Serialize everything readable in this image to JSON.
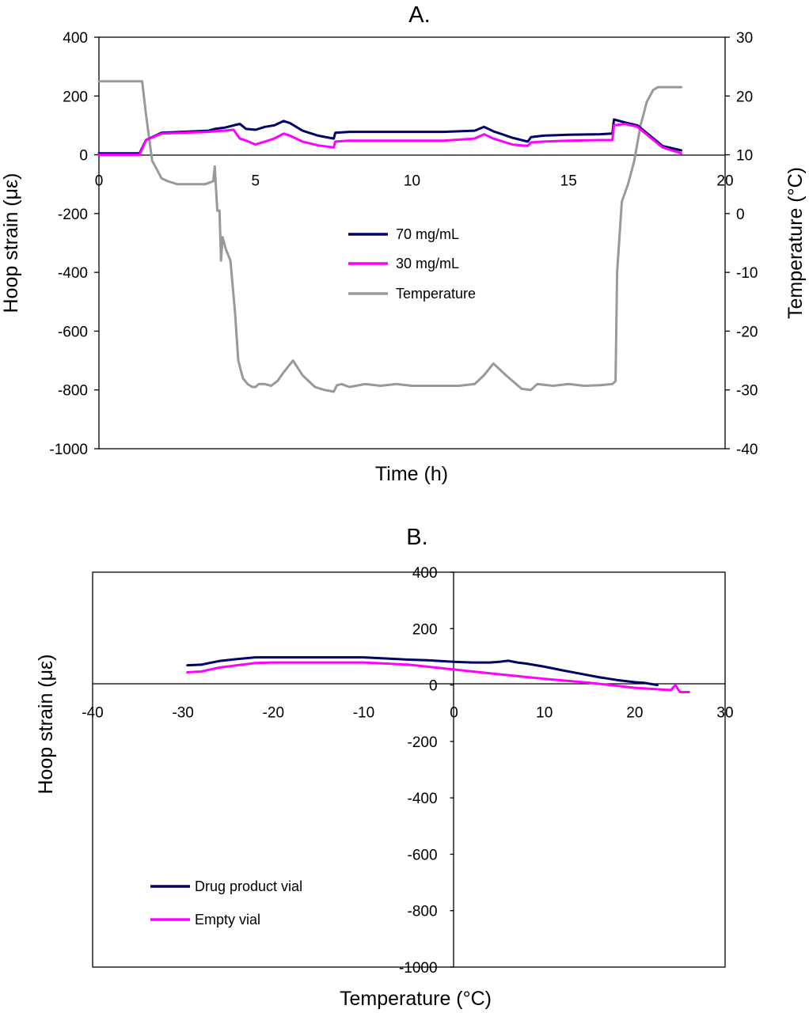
{
  "chart_data": [
    {
      "type": "line",
      "title": "A.",
      "xlabel": "Time (h)",
      "ylabel": "Hoop strain  (με)",
      "y2label": "Temperature (°C)",
      "xlim": [
        0,
        20
      ],
      "ylim": [
        -1000,
        400
      ],
      "y2lim": [
        -40,
        30
      ],
      "xticks": [
        0,
        5,
        10,
        15,
        20
      ],
      "yticks": [
        -1000,
        -800,
        -600,
        -400,
        -200,
        0,
        200,
        400
      ],
      "y2ticks": [
        -40,
        -30,
        -20,
        -10,
        0,
        10,
        20,
        30
      ],
      "grid": false,
      "legend_position": "center",
      "series": [
        {
          "name": "70 mg/mL",
          "color": "#000066",
          "axis": "left",
          "x": [
            0,
            1.3,
            1.5,
            2,
            3.5,
            3.7,
            4.0,
            4.3,
            4.5,
            4.7,
            5.0,
            5.3,
            5.6,
            5.9,
            6.1,
            6.5,
            7.0,
            7.5,
            7.55,
            8.0,
            9.0,
            10.0,
            11.0,
            12.0,
            12.3,
            12.6,
            13.2,
            13.7,
            13.8,
            14.2,
            15.0,
            16.0,
            16.4,
            16.45,
            16.8,
            17.2,
            17.6,
            18.0,
            18.6
          ],
          "y": [
            5,
            5,
            50,
            75,
            82,
            88,
            92,
            100,
            105,
            88,
            85,
            95,
            100,
            115,
            108,
            82,
            65,
            55,
            75,
            78,
            78,
            78,
            78,
            82,
            95,
            80,
            58,
            45,
            60,
            65,
            68,
            70,
            72,
            120,
            110,
            100,
            65,
            30,
            15
          ]
        },
        {
          "name": "30 mg/mL",
          "color": "#ff00ff",
          "axis": "left",
          "x": [
            0,
            1.3,
            1.5,
            2,
            3.5,
            3.7,
            4.0,
            4.3,
            4.5,
            4.7,
            5.0,
            5.3,
            5.6,
            5.9,
            6.1,
            6.5,
            7.0,
            7.5,
            7.55,
            8.0,
            9.0,
            10.0,
            11.0,
            12.0,
            12.3,
            12.6,
            13.2,
            13.7,
            13.8,
            14.2,
            15.0,
            16.0,
            16.4,
            16.45,
            16.8,
            17.2,
            17.6,
            18.0,
            18.6
          ],
          "y": [
            0,
            0,
            50,
            72,
            78,
            80,
            82,
            85,
            55,
            48,
            35,
            45,
            55,
            72,
            65,
            45,
            32,
            25,
            45,
            48,
            48,
            48,
            48,
            55,
            70,
            55,
            35,
            30,
            42,
            45,
            48,
            50,
            50,
            100,
            105,
            95,
            60,
            25,
            5
          ]
        },
        {
          "name": "Temperature",
          "color": "#999999",
          "axis": "right",
          "x": [
            0,
            1.3,
            1.38,
            1.5,
            1.7,
            2.0,
            2.2,
            2.5,
            2.8,
            3.1,
            3.4,
            3.65,
            3.7,
            3.78,
            3.85,
            3.9,
            3.95,
            4.05,
            4.2,
            4.35,
            4.45,
            4.6,
            4.75,
            4.9,
            5.0,
            5.1,
            5.3,
            5.5,
            5.7,
            5.9,
            6.2,
            6.5,
            6.9,
            7.2,
            7.5,
            7.6,
            7.75,
            8.0,
            8.5,
            9.0,
            9.5,
            10.0,
            10.5,
            11.0,
            11.5,
            12.0,
            12.3,
            12.6,
            13.0,
            13.5,
            13.8,
            14.0,
            14.5,
            15.0,
            15.5,
            16.0,
            16.4,
            16.5,
            16.55,
            16.7,
            16.9,
            17.1,
            17.3,
            17.5,
            17.7,
            17.85,
            18.0,
            18.3,
            18.6
          ],
          "y": [
            22.5,
            22.5,
            22.5,
            17,
            9,
            6,
            5.5,
            5,
            5,
            5,
            5,
            5.5,
            8,
            0.5,
            0.5,
            -8,
            -4,
            -6,
            -8,
            -17,
            -25,
            -28,
            -29,
            -29.5,
            -29.5,
            -29,
            -29,
            -29.3,
            -28.5,
            -27,
            -25,
            -27.5,
            -29.5,
            -30,
            -30.3,
            -29.2,
            -29,
            -29.5,
            -29,
            -29.3,
            -29,
            -29.3,
            -29.3,
            -29.3,
            -29.3,
            -29,
            -27.5,
            -25.5,
            -27.5,
            -29.8,
            -30,
            -29,
            -29.3,
            -29,
            -29.3,
            -29.2,
            -29,
            -28.5,
            -10,
            2,
            5,
            9,
            15,
            19,
            21,
            21.5,
            21.5,
            21.5,
            21.5
          ]
        }
      ]
    },
    {
      "type": "line",
      "title": "B.",
      "xlabel": "Temperature (°C)",
      "ylabel": "Hoop strain (με)",
      "xlim": [
        -40,
        30
      ],
      "ylim": [
        -1000,
        400
      ],
      "xticks": [
        -40,
        -30,
        -20,
        -10,
        0,
        10,
        20,
        30
      ],
      "yticks": [
        -1000,
        -800,
        -600,
        -400,
        -200,
        0,
        200,
        400
      ],
      "grid": false,
      "legend_position": "bottom-left",
      "series": [
        {
          "name": "Drug product vial",
          "color": "#000066",
          "x": [
            -29.5,
            -28,
            -26,
            -24,
            -22,
            -20,
            -15,
            -10,
            -5,
            -3,
            0,
            2,
            4,
            5,
            6,
            7,
            8,
            10,
            12,
            14,
            16,
            18,
            20,
            21,
            22.5
          ],
          "y": [
            70,
            72,
            85,
            92,
            98,
            98,
            98,
            98,
            90,
            88,
            82,
            80,
            80,
            82,
            86,
            80,
            76,
            65,
            52,
            40,
            28,
            18,
            10,
            8,
            0
          ]
        },
        {
          "name": "Empty vial",
          "color": "#ff00ff",
          "x": [
            -29.5,
            -28,
            -26,
            -24,
            -22,
            -20,
            -15,
            -10,
            -5,
            0,
            5,
            10,
            15,
            20,
            24,
            24.5,
            25,
            26
          ],
          "y": [
            45,
            48,
            62,
            70,
            78,
            80,
            80,
            80,
            72,
            55,
            38,
            22,
            8,
            -10,
            -18,
            0,
            -25,
            -25
          ]
        }
      ]
    }
  ]
}
